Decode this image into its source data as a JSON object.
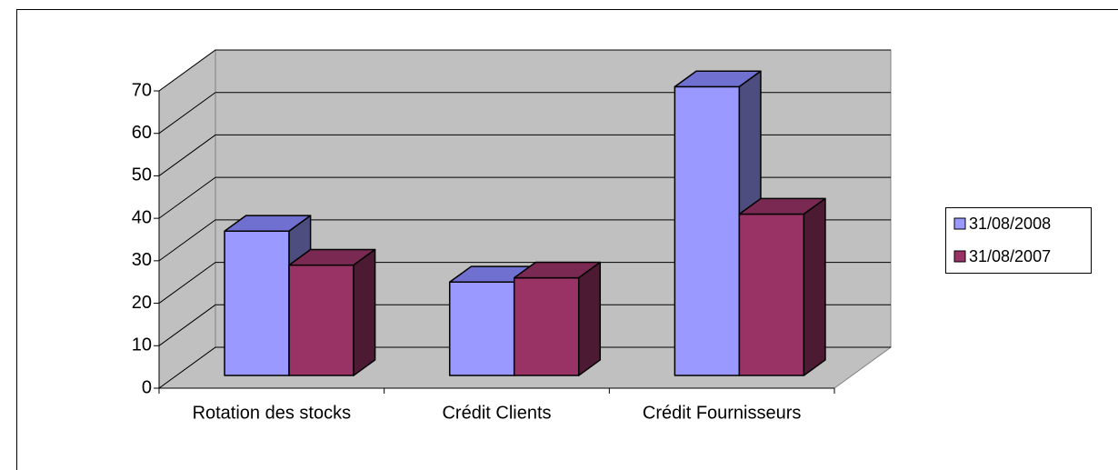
{
  "chart_data": {
    "type": "bar3d",
    "categories": [
      "Rotation des stocks",
      "Crédit Clients",
      "Crédit Fournisseurs"
    ],
    "series": [
      {
        "name": "31/08/2008",
        "color": "#9999ff",
        "top": "#7070d0",
        "side": "#4d4d80",
        "values": [
          34,
          22,
          68
        ]
      },
      {
        "name": "31/08/2007",
        "color": "#993366",
        "top": "#7a2952",
        "side": "#4d1a33",
        "values": [
          26,
          23,
          38
        ]
      }
    ],
    "ylim": [
      0,
      70
    ],
    "yticks": [
      0,
      10,
      20,
      30,
      40,
      50,
      60,
      70
    ],
    "grid": true,
    "legend": "right"
  }
}
